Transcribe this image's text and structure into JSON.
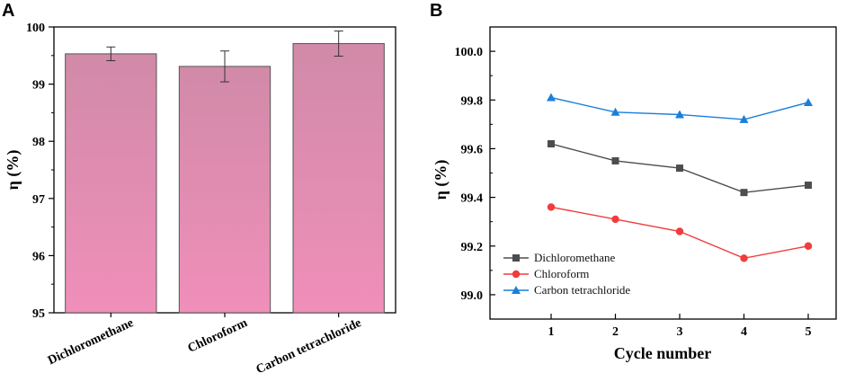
{
  "chart_data": [
    {
      "panel": "A",
      "type": "bar",
      "categories": [
        "Dichloromethane",
        "Chloroform",
        "Carbon tetrachloride"
      ],
      "values": [
        99.53,
        99.31,
        99.71
      ],
      "errors": [
        0.12,
        0.27,
        0.22
      ],
      "ylabel": "η (%)",
      "xlabel": "",
      "ylim": [
        95,
        100
      ],
      "yticks": [
        "95",
        "96",
        "97",
        "98",
        "99",
        "100"
      ],
      "bar_color_top": "#d18aa8",
      "bar_color_bottom": "#f08fba",
      "grid": false
    },
    {
      "panel": "B",
      "type": "line",
      "x": [
        1,
        2,
        3,
        4,
        5
      ],
      "xticks": [
        "1",
        "2",
        "3",
        "4",
        "5"
      ],
      "xlabel": "Cycle number",
      "ylabel": "η (%)",
      "ylim": [
        98.9,
        100.1
      ],
      "yticks": [
        "99.0",
        "99.2",
        "99.4",
        "99.6",
        "99.8",
        "100.0"
      ],
      "grid": false,
      "legend_position": "bottom-left",
      "series": [
        {
          "name": "Dichloromethane",
          "values": [
            99.62,
            99.55,
            99.52,
            99.42,
            99.45
          ],
          "color": "#4d4d4d",
          "marker": "square"
        },
        {
          "name": "Chloroform",
          "values": [
            99.36,
            99.31,
            99.26,
            99.15,
            99.2
          ],
          "color": "#f03c3c",
          "marker": "circle"
        },
        {
          "name": "Carbon tetrachloride",
          "values": [
            99.81,
            99.75,
            99.74,
            99.72,
            99.79
          ],
          "color": "#1a7fdc",
          "marker": "triangle"
        }
      ]
    }
  ],
  "panel_labels": {
    "a": "A",
    "b": "B"
  }
}
